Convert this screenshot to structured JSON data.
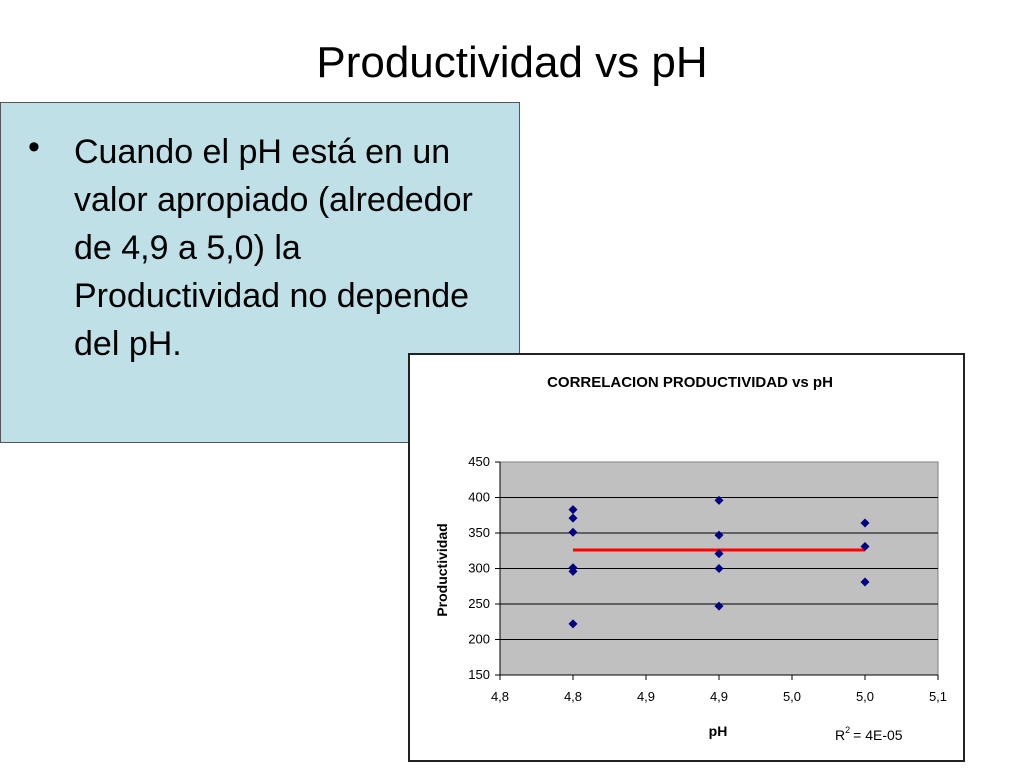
{
  "slide": {
    "title": "Productividad vs pH",
    "bullet": "Cuando el pH está en un valor apropiado (alrededor de 4,9 a 5,0) la Productividad no depende del pH."
  },
  "colors": {
    "text_box_bg": "#bfe0e6",
    "plot_bg": "#c0c0c0",
    "marker": "#000080",
    "trendline": "#ff0000"
  },
  "chart_data": {
    "type": "scatter",
    "title": "CORRELACION PRODUCTIVIDAD vs pH",
    "xlabel": "pH",
    "ylabel": "Productividad",
    "xlim": [
      4.8,
      5.1
    ],
    "ylim": [
      150,
      450
    ],
    "x_ticks": [
      "4,8",
      "4,8",
      "4,9",
      "4,9",
      "5,0",
      "5,0",
      "5,1"
    ],
    "y_ticks": [
      "150",
      "200",
      "250",
      "300",
      "350",
      "400",
      "450"
    ],
    "grid": true,
    "marker_shape": "diamond",
    "series": [
      {
        "points": [
          {
            "x": 4.85,
            "y": 383
          },
          {
            "x": 4.85,
            "y": 371
          },
          {
            "x": 4.85,
            "y": 351
          },
          {
            "x": 4.85,
            "y": 301
          },
          {
            "x": 4.85,
            "y": 296
          },
          {
            "x": 4.85,
            "y": 222
          },
          {
            "x": 4.95,
            "y": 396
          },
          {
            "x": 4.95,
            "y": 347
          },
          {
            "x": 4.95,
            "y": 321
          },
          {
            "x": 4.95,
            "y": 300
          },
          {
            "x": 4.95,
            "y": 247
          },
          {
            "x": 5.05,
            "y": 364
          },
          {
            "x": 5.05,
            "y": 331
          },
          {
            "x": 5.05,
            "y": 281
          }
        ]
      }
    ],
    "trendline": {
      "x": [
        4.85,
        5.05
      ],
      "y": [
        326,
        326
      ]
    },
    "r_squared_label": "R",
    "r_squared_superscript": "2",
    "r_squared_value": "= 4E-05"
  }
}
